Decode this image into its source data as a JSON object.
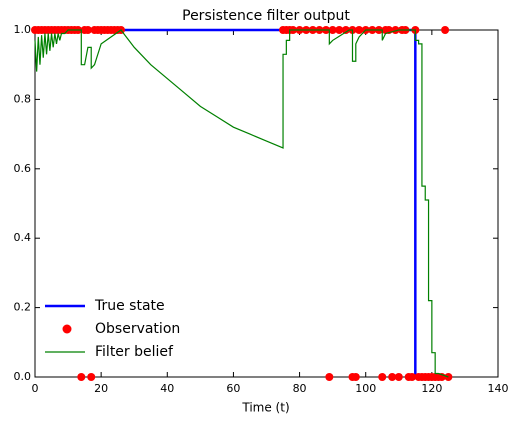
{
  "chart_data": {
    "type": "line",
    "title": "Persistence filter output",
    "xlabel": "Time (t)",
    "xlim": [
      0,
      140
    ],
    "xticks": [
      0,
      20,
      40,
      60,
      80,
      100,
      120,
      140
    ],
    "ylim": [
      0,
      1
    ],
    "yticks": [
      {
        "value": 0,
        "label": "0.0"
      },
      {
        "value": 0.2,
        "label": "0.2"
      },
      {
        "value": 0.4,
        "label": "0.4"
      },
      {
        "value": 0.6,
        "label": "0.6"
      },
      {
        "value": 0.8,
        "label": "0.8"
      },
      {
        "value": 1,
        "label": "1.0"
      }
    ],
    "legend": "lower left",
    "series": [
      {
        "name": "True state",
        "type": "line",
        "color": "#0000ff",
        "x": [
          0,
          115,
          115,
          125
        ],
        "values": [
          1,
          1,
          0,
          0
        ]
      },
      {
        "name": "Observation",
        "type": "scatter",
        "color": "#ff0000",
        "x": [
          0,
          1,
          2,
          3,
          4,
          5,
          6,
          7,
          8,
          9,
          10,
          11,
          12,
          13,
          15,
          16,
          18,
          19,
          20,
          21,
          22,
          23,
          24,
          25,
          26,
          75,
          76,
          77,
          78,
          80,
          82,
          84,
          86,
          88,
          90,
          92,
          94,
          96,
          98,
          100,
          102,
          104,
          106,
          107,
          109,
          111,
          112,
          115,
          124,
          14,
          17,
          89,
          96,
          97,
          105,
          108,
          110,
          113,
          114,
          116,
          117,
          118,
          119,
          120,
          121,
          122,
          123,
          125
        ],
        "values": [
          1,
          1,
          1,
          1,
          1,
          1,
          1,
          1,
          1,
          1,
          1,
          1,
          1,
          1,
          1,
          1,
          1,
          1,
          1,
          1,
          1,
          1,
          1,
          1,
          1,
          1,
          1,
          1,
          1,
          1,
          1,
          1,
          1,
          1,
          1,
          1,
          1,
          1,
          1,
          1,
          1,
          1,
          1,
          1,
          1,
          1,
          1,
          1,
          1,
          0,
          0,
          0,
          0,
          0,
          0,
          0,
          0,
          0,
          0,
          0,
          0,
          0,
          0,
          0,
          0,
          0,
          0,
          0
        ]
      },
      {
        "name": "Filter belief",
        "type": "line",
        "color": "#008000",
        "x": [
          0,
          0.5,
          1,
          1.5,
          2,
          2.5,
          3,
          3.5,
          4,
          4.5,
          5,
          5.5,
          6,
          6.5,
          7,
          7.5,
          8,
          9,
          10,
          12,
          14,
          14,
          15,
          16,
          17,
          17,
          18,
          20,
          26,
          30,
          35,
          40,
          45,
          50,
          55,
          60,
          65,
          70,
          75,
          75,
          76,
          76,
          77,
          77,
          88,
          89,
          89,
          90,
          95,
          96,
          96,
          97,
          97,
          98,
          100,
          104,
          105,
          105,
          106,
          110,
          114,
          115,
          115,
          116,
          116,
          117,
          117,
          118,
          118,
          119,
          119,
          120,
          120,
          121,
          121,
          122,
          125
        ],
        "values": [
          0.97,
          0.88,
          0.98,
          0.9,
          0.985,
          0.92,
          0.99,
          0.93,
          0.99,
          0.94,
          0.99,
          0.95,
          0.99,
          0.96,
          0.99,
          0.97,
          0.99,
          0.99,
          1,
          1,
          1,
          0.9,
          0.9,
          0.95,
          0.95,
          0.89,
          0.9,
          0.96,
          1,
          0.95,
          0.9,
          0.86,
          0.82,
          0.78,
          0.75,
          0.72,
          0.7,
          0.68,
          0.66,
          0.93,
          0.93,
          0.97,
          0.97,
          1,
          1,
          1,
          0.96,
          0.97,
          1,
          1,
          0.91,
          0.91,
          0.96,
          0.98,
          1,
          1,
          1,
          0.97,
          0.99,
          1,
          1,
          1,
          0.97,
          0.97,
          0.96,
          0.96,
          0.55,
          0.55,
          0.51,
          0.51,
          0.22,
          0.22,
          0.07,
          0.07,
          0.01,
          0.01,
          0
        ]
      }
    ]
  }
}
